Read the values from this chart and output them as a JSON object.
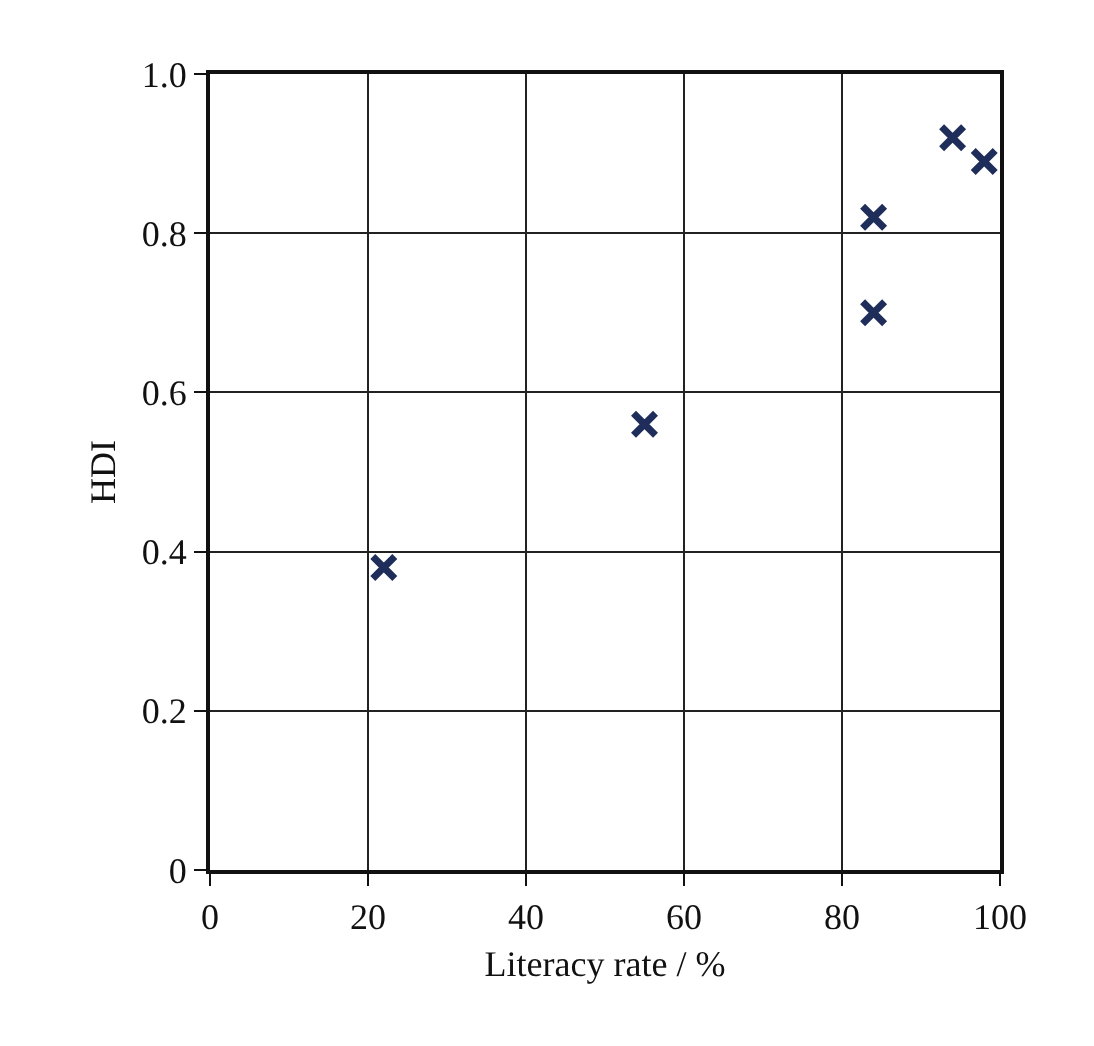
{
  "chart_data": {
    "type": "scatter",
    "xlabel": "Literacy rate / %",
    "ylabel": "HDI",
    "x": [
      22,
      55,
      84,
      84,
      94,
      98
    ],
    "values": [
      0.38,
      0.56,
      0.82,
      0.7,
      0.92,
      0.89
    ],
    "color": "#1f2d5a",
    "marker": "cross",
    "xlim": [
      0,
      100
    ],
    "xticks": [
      0,
      20,
      40,
      60,
      80,
      100
    ],
    "ylim": [
      0,
      1
    ],
    "yticks": [
      0,
      0.2,
      0.4,
      0.6,
      0.8,
      {
        "value": 1,
        "label": "1.0"
      }
    ],
    "grid": true,
    "legend": false
  }
}
